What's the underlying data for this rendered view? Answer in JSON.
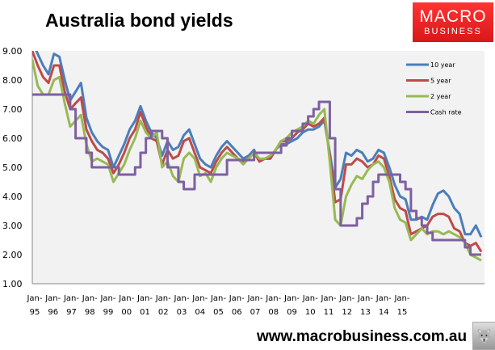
{
  "header": {
    "title": "Australia bond yields"
  },
  "logo": {
    "line1": "MACRO",
    "line2": "BUSINESS"
  },
  "footer": {
    "url": "www.macrobusiness.com.au",
    "icon": "wolf-icon"
  },
  "chart_data": {
    "type": "line",
    "title": "Australia bond yields",
    "xlabel": "",
    "ylabel": "",
    "ylim": [
      1,
      9
    ],
    "yticks": [
      "9.00",
      "8.00",
      "7.00",
      "6.00",
      "5.00",
      "4.00",
      "3.00",
      "2.00",
      "1.00"
    ],
    "xticks": [
      [
        "Jan-",
        "95"
      ],
      [
        "Jan-",
        "96"
      ],
      [
        "Jan-",
        "97"
      ],
      [
        "Jan-",
        "98"
      ],
      [
        "Jan-",
        "99"
      ],
      [
        "Jan-",
        "00"
      ],
      [
        "Jan-",
        "01"
      ],
      [
        "Jan-",
        "02"
      ],
      [
        "Jan-",
        "03"
      ],
      [
        "Jan-",
        "04"
      ],
      [
        "Jan-",
        "05"
      ],
      [
        "Jan-",
        "06"
      ],
      [
        "Jan-",
        "07"
      ],
      [
        "Jan-",
        "08"
      ],
      [
        "Jan-",
        "09"
      ],
      [
        "Jan-",
        "10"
      ],
      [
        "Jan-",
        "11"
      ],
      [
        "Jan-",
        "12"
      ],
      [
        "Jan-",
        "13"
      ],
      [
        "Jan-",
        "14"
      ],
      [
        "Jan-",
        "15"
      ]
    ],
    "x_start": 1995.0,
    "x_step": 0.25,
    "legend_position": "top-right",
    "series": [
      {
        "name": "10 year",
        "color": "#4a7ebb",
        "values": [
          9.3,
          8.9,
          8.5,
          8.2,
          8.9,
          8.8,
          8.0,
          7.3,
          7.6,
          7.9,
          6.7,
          6.2,
          5.9,
          5.7,
          5.6,
          5.0,
          5.4,
          5.8,
          6.3,
          6.6,
          7.1,
          6.6,
          6.2,
          6.0,
          5.4,
          5.9,
          5.6,
          5.7,
          6.1,
          6.3,
          5.8,
          5.3,
          5.1,
          5.0,
          5.4,
          5.7,
          5.9,
          5.7,
          5.5,
          5.3,
          5.4,
          5.6,
          5.2,
          5.3,
          5.3,
          5.6,
          5.8,
          5.8,
          5.9,
          6.0,
          6.2,
          6.3,
          6.3,
          6.4,
          6.6,
          5.5,
          4.3,
          4.6,
          5.5,
          5.4,
          5.6,
          5.5,
          5.2,
          5.3,
          5.6,
          5.5,
          5.0,
          4.4,
          4.0,
          3.9,
          3.2,
          3.2,
          3.3,
          3.2,
          3.7,
          4.1,
          4.2,
          4.0,
          3.6,
          3.4,
          2.7,
          2.7,
          3.0,
          2.6
        ]
      },
      {
        "name": "5 year",
        "color": "#be4b48",
        "values": [
          9.0,
          8.5,
          8.1,
          7.9,
          8.5,
          8.5,
          7.6,
          7.0,
          7.2,
          7.4,
          6.3,
          5.9,
          5.6,
          5.5,
          5.3,
          4.8,
          5.1,
          5.5,
          6.0,
          6.3,
          6.9,
          6.4,
          6.0,
          5.9,
          5.1,
          5.6,
          5.3,
          5.4,
          5.9,
          6.0,
          5.5,
          5.0,
          4.9,
          4.8,
          5.2,
          5.5,
          5.7,
          5.5,
          5.3,
          5.2,
          5.3,
          5.5,
          5.2,
          5.3,
          5.3,
          5.6,
          5.9,
          5.9,
          6.0,
          6.2,
          6.3,
          6.5,
          6.4,
          6.5,
          6.7,
          5.4,
          3.8,
          3.9,
          5.1,
          5.1,
          5.3,
          5.2,
          5.0,
          5.1,
          5.4,
          5.3,
          4.7,
          3.9,
          3.6,
          3.5,
          2.7,
          2.8,
          2.9,
          3.0,
          3.3,
          3.4,
          3.4,
          3.3,
          2.9,
          2.8,
          2.4,
          2.3,
          2.4,
          2.1
        ]
      },
      {
        "name": "2 year",
        "color": "#98b954",
        "values": [
          8.7,
          7.8,
          7.5,
          7.5,
          8.0,
          8.1,
          7.2,
          6.4,
          6.6,
          6.8,
          5.8,
          5.2,
          5.3,
          5.2,
          5.1,
          4.5,
          4.8,
          5.1,
          5.6,
          6.0,
          6.6,
          6.2,
          6.0,
          6.2,
          5.0,
          5.2,
          4.7,
          4.5,
          5.3,
          5.5,
          5.3,
          4.7,
          4.8,
          4.5,
          5.0,
          5.3,
          5.5,
          5.4,
          5.3,
          5.1,
          5.3,
          5.5,
          5.3,
          5.3,
          5.4,
          5.6,
          5.9,
          6.0,
          6.2,
          6.3,
          6.4,
          6.6,
          6.5,
          6.8,
          7.0,
          5.2,
          3.2,
          3.0,
          4.0,
          4.4,
          4.7,
          4.6,
          4.9,
          5.1,
          5.2,
          5.0,
          4.5,
          3.6,
          3.2,
          3.1,
          2.5,
          2.7,
          2.9,
          2.7,
          2.8,
          2.8,
          2.7,
          2.8,
          2.7,
          2.6,
          2.4,
          2.0,
          1.9,
          1.8
        ]
      },
      {
        "name": "Cash rate",
        "color": "#7d60a0",
        "values": [
          7.5,
          7.5,
          7.5,
          7.5,
          7.5,
          7.5,
          7.5,
          7.0,
          6.0,
          6.0,
          5.5,
          5.0,
          5.0,
          5.0,
          5.0,
          5.0,
          4.75,
          4.75,
          4.75,
          5.0,
          5.5,
          6.0,
          6.25,
          6.25,
          6.0,
          5.0,
          5.0,
          4.5,
          4.25,
          4.25,
          4.75,
          4.75,
          4.75,
          4.75,
          4.75,
          4.75,
          5.25,
          5.25,
          5.25,
          5.25,
          5.25,
          5.5,
          5.5,
          5.5,
          5.5,
          5.5,
          5.75,
          6.0,
          6.25,
          6.25,
          6.5,
          6.75,
          7.0,
          7.25,
          7.25,
          6.0,
          4.25,
          3.0,
          3.0,
          3.0,
          3.25,
          3.75,
          4.0,
          4.5,
          4.75,
          4.75,
          4.75,
          4.75,
          4.5,
          4.25,
          3.5,
          3.25,
          3.0,
          2.75,
          2.5,
          2.5,
          2.5,
          2.5,
          2.5,
          2.5,
          2.25,
          2.0,
          2.0,
          2.0
        ]
      }
    ]
  }
}
